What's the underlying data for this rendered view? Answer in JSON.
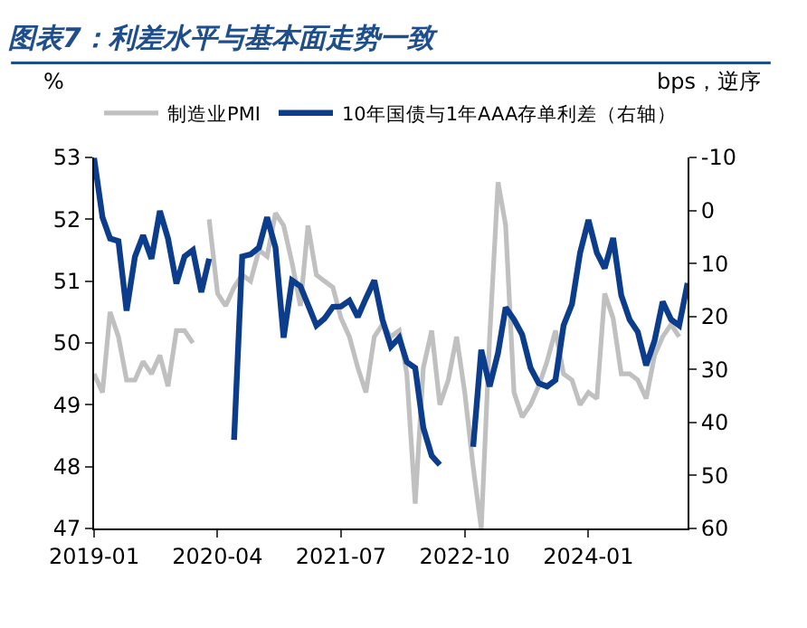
{
  "chart_data": {
    "type": "line",
    "title": "图表7：利差水平与基本面走势一致",
    "ylabel": "%",
    "y2label": "bps，逆序",
    "x": [
      "2019-01",
      "2019-02",
      "2019-03",
      "2019-04",
      "2019-05",
      "2019-06",
      "2019-07",
      "2019-08",
      "2019-09",
      "2019-10",
      "2019-11",
      "2019-12",
      "2020-01",
      "2020-02",
      "2020-03",
      "2020-04",
      "2020-05",
      "2020-06",
      "2020-07",
      "2020-08",
      "2020-09",
      "2020-10",
      "2020-11",
      "2020-12",
      "2021-01",
      "2021-02",
      "2021-03",
      "2021-04",
      "2021-05",
      "2021-06",
      "2021-07",
      "2021-08",
      "2021-09",
      "2021-10",
      "2021-11",
      "2021-12",
      "2022-01",
      "2022-02",
      "2022-03",
      "2022-04",
      "2022-05",
      "2022-06",
      "2022-07",
      "2022-08",
      "2022-09",
      "2022-10",
      "2022-11",
      "2022-12",
      "2023-01",
      "2023-02",
      "2023-03",
      "2023-04",
      "2023-05",
      "2023-06",
      "2023-07",
      "2023-08",
      "2023-09",
      "2023-10",
      "2023-11",
      "2023-12",
      "2024-01",
      "2024-02",
      "2024-03",
      "2024-04",
      "2024-05",
      "2024-06",
      "2024-07",
      "2024-08",
      "2024-09",
      "2024-10",
      "2024-11",
      "2024-12",
      "2025-01"
    ],
    "series": [
      {
        "name": "制造业PMI",
        "color": "#c0c0c0",
        "values": [
          49.5,
          49.2,
          50.5,
          50.1,
          49.4,
          49.4,
          49.7,
          49.5,
          49.8,
          49.3,
          50.2,
          50.2,
          50.0,
          null,
          52.0,
          50.8,
          50.6,
          50.9,
          51.1,
          51.0,
          51.5,
          51.4,
          52.1,
          51.9,
          51.3,
          50.6,
          51.9,
          51.1,
          51.0,
          50.9,
          50.4,
          50.1,
          49.6,
          49.2,
          50.1,
          50.3,
          50.1,
          50.2,
          49.5,
          47.4,
          49.6,
          50.2,
          49.0,
          49.4,
          50.1,
          49.2,
          48.0,
          47.0,
          50.1,
          52.6,
          51.9,
          49.2,
          48.8,
          49.0,
          49.3,
          49.7,
          50.2,
          49.5,
          49.4,
          49.0,
          49.2,
          49.1,
          50.8,
          50.4,
          49.5,
          49.5,
          49.4,
          49.1,
          49.8,
          50.1,
          50.3,
          50.1,
          null
        ]
      },
      {
        "name": "10年国债与1年AAA存单利差（右轴）",
        "color": "#0b3d8c",
        "axis": "y2",
        "values": [
          -9.9,
          1.3,
          5.3,
          5.8,
          18.9,
          8.7,
          4.7,
          9.1,
          0.1,
          5.3,
          13.8,
          8.7,
          7.5,
          15.4,
          9.1,
          null,
          null,
          43.3,
          8.7,
          8.3,
          7.0,
          1.3,
          7.0,
          24.0,
          13.2,
          14.3,
          17.8,
          21.7,
          20.4,
          18.2,
          18.1,
          17.0,
          20.1,
          16.6,
          13.2,
          20.6,
          25.7,
          24.0,
          28.6,
          29.7,
          41.0,
          46.3,
          48.0,
          null,
          null,
          null,
          44.6,
          26.3,
          33.2,
          26.9,
          18.3,
          20.6,
          23.4,
          29.7,
          32.6,
          33.2,
          32.0,
          21.7,
          17.7,
          8.0,
          1.8,
          8.0,
          10.9,
          5.2,
          16.0,
          20.6,
          22.9,
          29.2,
          24.6,
          17.2,
          20.6,
          21.7,
          13.7
        ]
      }
    ],
    "xlim": [
      "2019-01",
      "2025-01"
    ],
    "xticks": [
      {
        "value": "2019-01",
        "label": "2019-01"
      },
      {
        "value": "2020-04",
        "label": "2020-04"
      },
      {
        "value": "2021-07",
        "label": "2021-07"
      },
      {
        "value": "2022-10",
        "label": "2022-10"
      },
      {
        "value": "2024-01",
        "label": "2024-01"
      }
    ],
    "ylim": [
      47,
      53
    ],
    "yticks": [
      47,
      48,
      49,
      50,
      51,
      52,
      53
    ],
    "y2lim": [
      60,
      -10
    ],
    "y2ticks": [
      -10,
      0,
      10,
      20,
      30,
      40,
      50,
      60
    ],
    "legend": "top",
    "marker": "none",
    "line_style": "solid"
  }
}
